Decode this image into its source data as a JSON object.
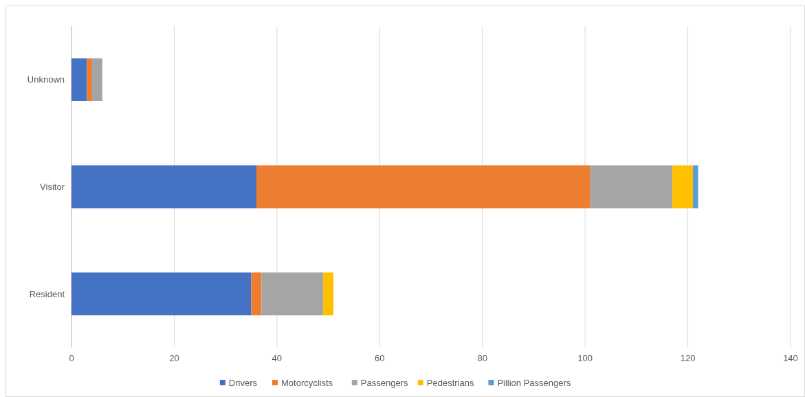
{
  "chart_data": {
    "type": "bar",
    "orientation": "horizontal",
    "stacked": true,
    "categories": [
      "Unknown",
      "Visitor",
      "Resident"
    ],
    "series": [
      {
        "name": "Drivers",
        "color": "#4472c4",
        "values": [
          3,
          36,
          35
        ]
      },
      {
        "name": "Motorcyclists",
        "color": "#ed7d31",
        "values": [
          1,
          65,
          2
        ]
      },
      {
        "name": "Passengers",
        "color": "#a5a5a5",
        "values": [
          2,
          16,
          12
        ]
      },
      {
        "name": "Pedestrians",
        "color": "#ffc000",
        "values": [
          null,
          4,
          2
        ]
      },
      {
        "name": "Pillion Passengers",
        "color": "#5b9bd5",
        "values": [
          null,
          1,
          null
        ]
      }
    ],
    "xlim": [
      0,
      140
    ],
    "xticks": [
      0,
      20,
      40,
      60,
      80,
      100,
      120,
      140
    ],
    "grid": "x",
    "legend": "bottom"
  }
}
